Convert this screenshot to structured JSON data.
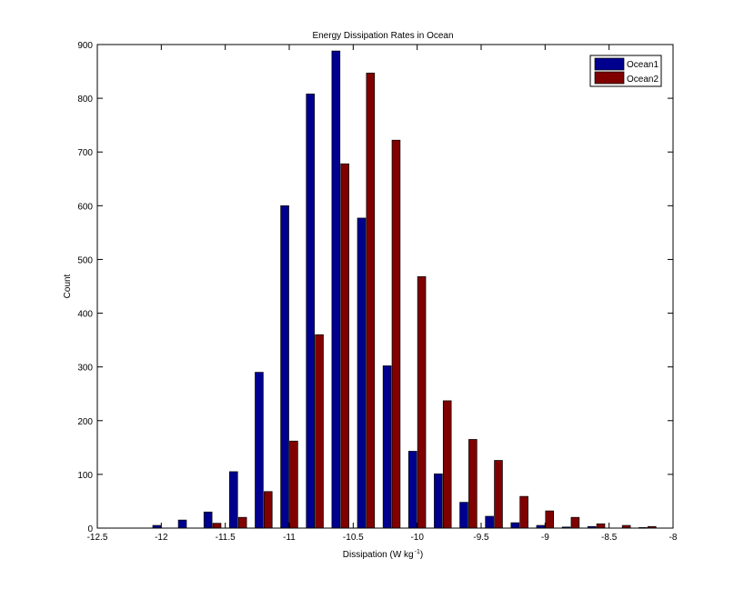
{
  "chart_data": {
    "type": "bar",
    "title": "Energy Dissipation Rates in Ocean",
    "xlabel": "Dissipation (W kg",
    "xlabel_sup": "-1",
    "xlabel_end": ")",
    "ylabel": "Count",
    "xlim": [
      -12.5,
      -8
    ],
    "ylim": [
      0,
      900
    ],
    "xticks": [
      -12.5,
      -12,
      -11.5,
      -11,
      -10.5,
      -10,
      -9.5,
      -9,
      -8.5,
      -8
    ],
    "yticks": [
      0,
      100,
      200,
      300,
      400,
      500,
      600,
      700,
      800,
      900
    ],
    "xtick_labels": [
      "-12.5",
      "-12",
      "-11.5",
      "-11",
      "-10.5",
      "-10",
      "-9.5",
      "-9",
      "-8.5",
      "-8"
    ],
    "ytick_labels": [
      "0",
      "100",
      "200",
      "300",
      "400",
      "500",
      "600",
      "700",
      "800",
      "900"
    ],
    "grid": false,
    "legend_position": "top-right",
    "bin_centers": [
      -12.0,
      -11.8,
      -11.6,
      -11.4,
      -11.2,
      -11.0,
      -10.8,
      -10.6,
      -10.4,
      -10.2,
      -10.0,
      -9.8,
      -9.6,
      -9.4,
      -9.2,
      -9.0,
      -8.8,
      -8.6,
      -8.4,
      -8.2
    ],
    "series": [
      {
        "name": "Ocean1",
        "color": "#00008f",
        "values": [
          5,
          15,
          30,
          105,
          290,
          600,
          808,
          888,
          577,
          302,
          143,
          101,
          48,
          22,
          10,
          5,
          2,
          3,
          0,
          1
        ]
      },
      {
        "name": "Ocean2",
        "color": "#800000",
        "values": [
          0,
          0,
          9,
          20,
          68,
          162,
          360,
          678,
          847,
          722,
          468,
          237,
          165,
          126,
          59,
          32,
          20,
          8,
          5,
          3
        ]
      }
    ]
  }
}
